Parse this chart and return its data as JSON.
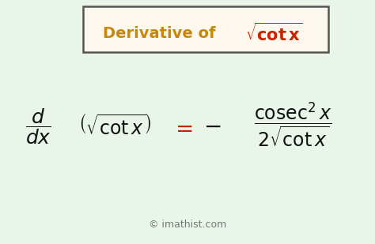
{
  "bg_color": "#e8f5e8",
  "title_text_color": "#c8860a",
  "title_formula_color": "#cc2200",
  "formula_color": "#111111",
  "equals_color": "#cc2200",
  "box_edge_color": "#555555",
  "box_face_color": "#fdf8ee",
  "watermark_color": "#777777",
  "figsize": [
    4.74,
    3.09
  ],
  "dpi": 100
}
